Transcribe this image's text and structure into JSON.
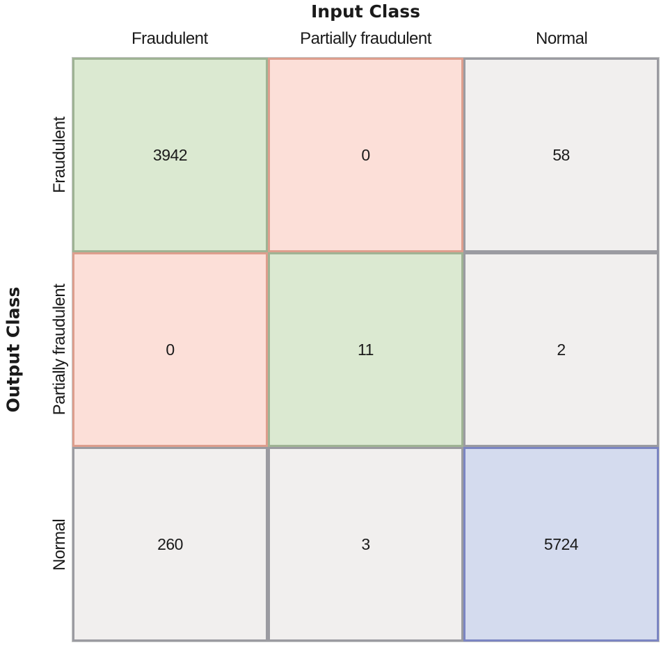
{
  "chart_data": {
    "type": "heatmap",
    "subtype": "confusion-matrix",
    "title": "Input Class",
    "ylabel": "Output Class",
    "columns": [
      "Fraudulent",
      "Partially fraudulent",
      "Normal"
    ],
    "rows": [
      "Fraudulent",
      "Partially fraudulent",
      "Normal"
    ],
    "matrix": [
      [
        3942,
        0,
        58
      ],
      [
        0,
        11,
        2
      ],
      [
        260,
        3,
        5724
      ]
    ],
    "cell_color_keys": [
      [
        "green",
        "pink",
        "gray"
      ],
      [
        "pink",
        "green",
        "gray"
      ],
      [
        "gray",
        "gray",
        "blue"
      ]
    ],
    "legend_position": "none",
    "grid": true
  },
  "colors": {
    "green": {
      "fill": "#dbe9d1",
      "border": "#9fb394"
    },
    "pink": {
      "fill": "#fcdfd8",
      "border": "#dd9e8d"
    },
    "gray": {
      "fill": "#f1efee",
      "border": "#9b9ba1"
    },
    "blue": {
      "fill": "#d4dbee",
      "border": "#7b85c2"
    },
    "text": "#1a1a1a",
    "background": "#ffffff"
  }
}
